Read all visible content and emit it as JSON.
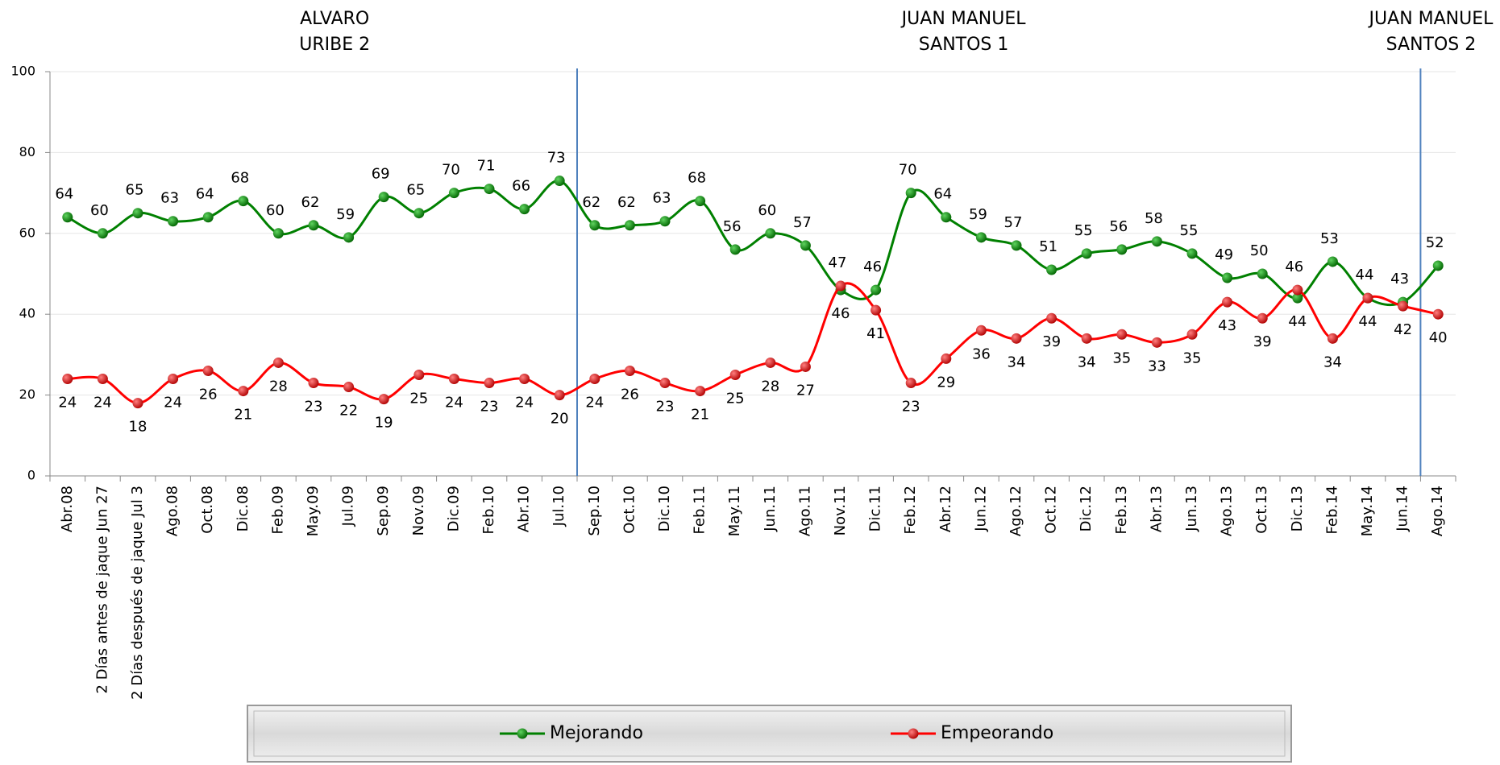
{
  "chart_data": {
    "type": "line",
    "categories": [
      "Abr.08",
      "2 Días antes de jaque Jun 27",
      "2 Días después de jaque Jul 3",
      "Ago.08",
      "Oct.08",
      "Dic.08",
      "Feb.09",
      "May.09",
      "Jul.09",
      "Sep.09",
      "Nov.09",
      "Dic.09",
      "Feb.10",
      "Abr.10",
      "Jul.10",
      "Sep.10",
      "Oct.10",
      "Dic.10",
      "Feb.11",
      "May.11",
      "Jun.11",
      "Ago.11",
      "Nov.11",
      "Dic.11",
      "Feb.12",
      "Abr.12",
      "Jun.12",
      "Ago.12",
      "Oct.12",
      "Dic.12",
      "Feb.13",
      "Abr.13",
      "Jun.13",
      "Ago.13",
      "Oct.13",
      "Dic.13",
      "Feb.14",
      "May.14",
      "Jun.14",
      "Ago.14"
    ],
    "series": [
      {
        "name": "Mejorando",
        "color": "#008000",
        "values": [
          64,
          60,
          65,
          63,
          64,
          68,
          60,
          62,
          59,
          69,
          65,
          70,
          71,
          66,
          73,
          62,
          62,
          63,
          68,
          56,
          60,
          57,
          46,
          46,
          70,
          64,
          59,
          57,
          51,
          55,
          56,
          58,
          55,
          49,
          50,
          44,
          53,
          44,
          43,
          52
        ]
      },
      {
        "name": "Empeorando",
        "color": "#ff0000",
        "values": [
          24,
          24,
          18,
          24,
          26,
          21,
          28,
          23,
          22,
          19,
          25,
          24,
          23,
          24,
          20,
          24,
          26,
          23,
          21,
          25,
          28,
          27,
          47,
          41,
          23,
          29,
          36,
          34,
          39,
          34,
          35,
          33,
          35,
          43,
          39,
          46,
          34,
          44,
          42,
          40
        ]
      }
    ],
    "annotations": [
      {
        "lines": [
          "ALVARO",
          "URIBE 2"
        ]
      },
      {
        "lines": [
          "JUAN MANUEL",
          "SANTOS 1"
        ]
      },
      {
        "lines": [
          "JUAN MANUEL",
          "SANTOS 2"
        ]
      }
    ],
    "ylim": [
      0,
      100
    ],
    "yticks": [
      0,
      20,
      40,
      60,
      80,
      100
    ],
    "grid": true,
    "legend": "bottom"
  }
}
